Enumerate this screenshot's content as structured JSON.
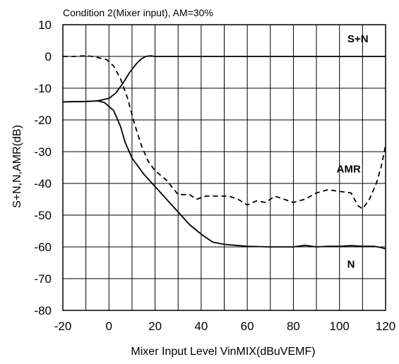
{
  "chart_data": {
    "type": "line",
    "title": "Condition 2(Mixer input), AM=30%",
    "xlabel": "Mixer Input Level VinMIX(dBuVEMF)",
    "ylabel": "S+N,N,AMR(dB)",
    "xlim": [
      -20,
      120
    ],
    "ylim": [
      -80,
      10
    ],
    "xticks": [
      -20,
      0,
      20,
      40,
      60,
      80,
      100,
      120
    ],
    "yticks": [
      10,
      0,
      -10,
      -20,
      -30,
      -40,
      -50,
      -60,
      -70,
      -80
    ],
    "grid": true,
    "series": [
      {
        "name": "S+N",
        "style": "solid",
        "color": "#000000",
        "points": [
          [
            -20,
            -14.3
          ],
          [
            -10,
            -14.2
          ],
          [
            -5,
            -14.0
          ],
          [
            0,
            -13.2
          ],
          [
            3,
            -11.5
          ],
          [
            6,
            -8.5
          ],
          [
            9,
            -5.0
          ],
          [
            12,
            -2.2
          ],
          [
            14,
            -0.8
          ],
          [
            16,
            0
          ],
          [
            18,
            0.2
          ],
          [
            20,
            0
          ],
          [
            40,
            0
          ],
          [
            60,
            0
          ],
          [
            80,
            0
          ],
          [
            100,
            0
          ],
          [
            120,
            0
          ]
        ]
      },
      {
        "name": "N",
        "style": "solid",
        "color": "#000000",
        "points": [
          [
            -20,
            -14.3
          ],
          [
            -10,
            -14.2
          ],
          [
            -5,
            -14.0
          ],
          [
            -2,
            -14.5
          ],
          [
            2,
            -17
          ],
          [
            5,
            -22
          ],
          [
            7,
            -27
          ],
          [
            10,
            -32
          ],
          [
            15,
            -37
          ],
          [
            20,
            -41
          ],
          [
            25,
            -45
          ],
          [
            30,
            -49
          ],
          [
            35,
            -53
          ],
          [
            40,
            -56
          ],
          [
            45,
            -58.5
          ],
          [
            50,
            -59.2
          ],
          [
            55,
            -59.5
          ],
          [
            60,
            -59.8
          ],
          [
            70,
            -60
          ],
          [
            80,
            -60
          ],
          [
            85,
            -59.5
          ],
          [
            90,
            -60
          ],
          [
            95,
            -59.8
          ],
          [
            100,
            -59.8
          ],
          [
            105,
            -59.6
          ],
          [
            110,
            -59.8
          ],
          [
            115,
            -59.8
          ],
          [
            118,
            -60.2
          ],
          [
            120,
            -60.6
          ]
        ]
      },
      {
        "name": "AMR",
        "style": "dashed",
        "color": "#000000",
        "points": [
          [
            -20,
            0
          ],
          [
            -15,
            0
          ],
          [
            -10,
            0.2
          ],
          [
            -7,
            0
          ],
          [
            -4,
            -0.5
          ],
          [
            -1,
            -1
          ],
          [
            2,
            -3
          ],
          [
            5,
            -7
          ],
          [
            8,
            -13
          ],
          [
            11,
            -21
          ],
          [
            14,
            -28
          ],
          [
            17,
            -33
          ],
          [
            20,
            -36
          ],
          [
            25,
            -39
          ],
          [
            30,
            -43.5
          ],
          [
            35,
            -43.5
          ],
          [
            38,
            -45
          ],
          [
            42,
            -44
          ],
          [
            48,
            -44
          ],
          [
            52,
            -44
          ],
          [
            56,
            -45
          ],
          [
            60,
            -46.8
          ],
          [
            64,
            -45.5
          ],
          [
            68,
            -46
          ],
          [
            72,
            -44
          ],
          [
            76,
            -45
          ],
          [
            80,
            -46
          ],
          [
            85,
            -45
          ],
          [
            90,
            -43
          ],
          [
            95,
            -42
          ],
          [
            100,
            -42.5
          ],
          [
            105,
            -43
          ],
          [
            108,
            -47
          ],
          [
            110,
            -48
          ],
          [
            113,
            -45
          ],
          [
            116,
            -40
          ],
          [
            118,
            -35
          ],
          [
            120,
            -28
          ]
        ]
      }
    ],
    "annotations": [
      {
        "text": "S+N",
        "x": 108,
        "y": 4.5
      },
      {
        "text": "AMR",
        "x": 104,
        "y": -36.5
      },
      {
        "text": "N",
        "x": 105,
        "y": -66.5
      }
    ]
  }
}
